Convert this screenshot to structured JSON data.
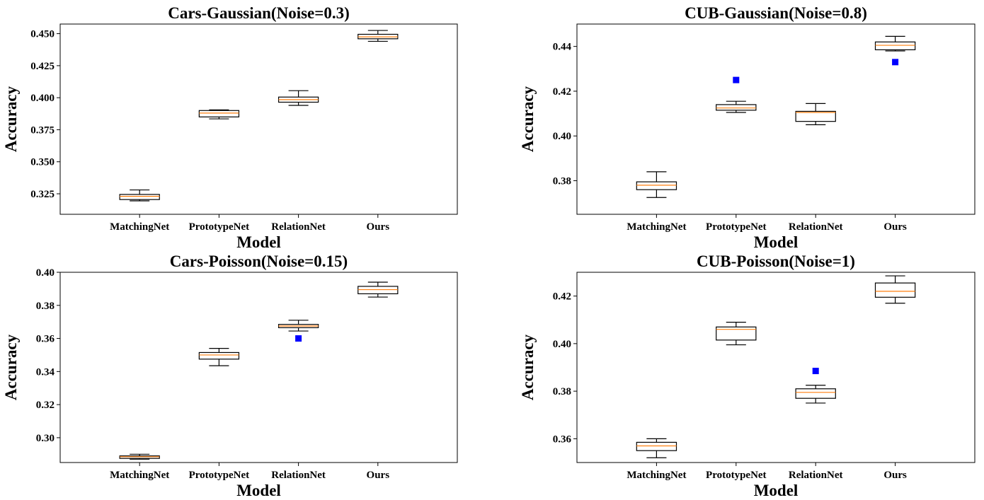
{
  "colors": {
    "box": "#000000",
    "median": "#ff7f0e",
    "flier": "#0000ff"
  },
  "chart_data": [
    {
      "type": "box",
      "title": "Cars-Gaussian(Noise=0.3)",
      "xlabel": "Model",
      "ylabel": "Accuracy",
      "categories": [
        "MatchingNet",
        "PrototypeNet",
        "RelationNet",
        "Ours"
      ],
      "ylim": [
        0.309,
        0.4575
      ],
      "yticks": [
        0.325,
        0.35,
        0.375,
        0.4,
        0.425,
        0.45
      ],
      "ytick_labels": [
        "0.325",
        "0.350",
        "0.375",
        "0.400",
        "0.425",
        "0.450"
      ],
      "boxes": [
        {
          "whislo": 0.3195,
          "q1": 0.3205,
          "med": 0.323,
          "q3": 0.3245,
          "whishi": 0.328,
          "fliers": []
        },
        {
          "whislo": 0.3835,
          "q1": 0.385,
          "med": 0.388,
          "q3": 0.39,
          "whishi": 0.3905,
          "fliers": []
        },
        {
          "whislo": 0.394,
          "q1": 0.3965,
          "med": 0.3985,
          "q3": 0.4005,
          "whishi": 0.4055,
          "fliers": []
        },
        {
          "whislo": 0.444,
          "q1": 0.446,
          "med": 0.4475,
          "q3": 0.4495,
          "whishi": 0.4525,
          "fliers": []
        }
      ]
    },
    {
      "type": "box",
      "title": "CUB-Gaussian(Noise=0.8)",
      "xlabel": "Model",
      "ylabel": "Accuracy",
      "categories": [
        "MatchingNet",
        "PrototypeNet",
        "RelationNet",
        "Ours"
      ],
      "ylim": [
        0.365,
        0.45
      ],
      "yticks": [
        0.38,
        0.4,
        0.42,
        0.44
      ],
      "ytick_labels": [
        "0.38",
        "0.40",
        "0.42",
        "0.44"
      ],
      "boxes": [
        {
          "whislo": 0.3725,
          "q1": 0.376,
          "med": 0.378,
          "q3": 0.3795,
          "whishi": 0.384,
          "fliers": []
        },
        {
          "whislo": 0.4105,
          "q1": 0.4115,
          "med": 0.4125,
          "q3": 0.414,
          "whishi": 0.4155,
          "fliers": [
            0.425
          ]
        },
        {
          "whislo": 0.405,
          "q1": 0.4065,
          "med": 0.4105,
          "q3": 0.411,
          "whishi": 0.4145,
          "fliers": []
        },
        {
          "whislo": 0.438,
          "q1": 0.4385,
          "med": 0.4405,
          "q3": 0.442,
          "whishi": 0.4445,
          "fliers": [
            0.433
          ]
        }
      ]
    },
    {
      "type": "box",
      "title": "Cars-Poisson(Noise=0.15)",
      "xlabel": "Model",
      "ylabel": "Accuracy",
      "categories": [
        "MatchingNet",
        "PrototypeNet",
        "RelationNet",
        "Ours"
      ],
      "ylim": [
        0.285,
        0.4
      ],
      "yticks": [
        0.3,
        0.32,
        0.34,
        0.36,
        0.38,
        0.4
      ],
      "ytick_labels": [
        "0.30",
        "0.32",
        "0.34",
        "0.36",
        "0.38",
        "0.40"
      ],
      "boxes": [
        {
          "whislo": 0.287,
          "q1": 0.2875,
          "med": 0.2885,
          "q3": 0.289,
          "whishi": 0.29,
          "fliers": []
        },
        {
          "whislo": 0.3435,
          "q1": 0.3475,
          "med": 0.35,
          "q3": 0.3515,
          "whishi": 0.354,
          "fliers": []
        },
        {
          "whislo": 0.3645,
          "q1": 0.3665,
          "med": 0.3675,
          "q3": 0.3685,
          "whishi": 0.371,
          "fliers": [
            0.36
          ]
        },
        {
          "whislo": 0.385,
          "q1": 0.387,
          "med": 0.3895,
          "q3": 0.3915,
          "whishi": 0.394,
          "fliers": []
        }
      ]
    },
    {
      "type": "box",
      "title": "CUB-Poisson(Noise=1)",
      "xlabel": "Model",
      "ylabel": "Accuracy",
      "categories": [
        "MatchingNet",
        "PrototypeNet",
        "RelationNet",
        "Ours"
      ],
      "ylim": [
        0.35,
        0.43
      ],
      "yticks": [
        0.36,
        0.38,
        0.4,
        0.42
      ],
      "ytick_labels": [
        "0.36",
        "0.38",
        "0.40",
        "0.42"
      ],
      "boxes": [
        {
          "whislo": 0.352,
          "q1": 0.355,
          "med": 0.357,
          "q3": 0.3585,
          "whishi": 0.36,
          "fliers": []
        },
        {
          "whislo": 0.3995,
          "q1": 0.4015,
          "med": 0.406,
          "q3": 0.407,
          "whishi": 0.409,
          "fliers": []
        },
        {
          "whislo": 0.375,
          "q1": 0.377,
          "med": 0.3795,
          "q3": 0.381,
          "whishi": 0.3825,
          "fliers": [
            0.3885
          ]
        },
        {
          "whislo": 0.417,
          "q1": 0.4195,
          "med": 0.422,
          "q3": 0.4255,
          "whishi": 0.4285,
          "fliers": []
        }
      ]
    }
  ]
}
